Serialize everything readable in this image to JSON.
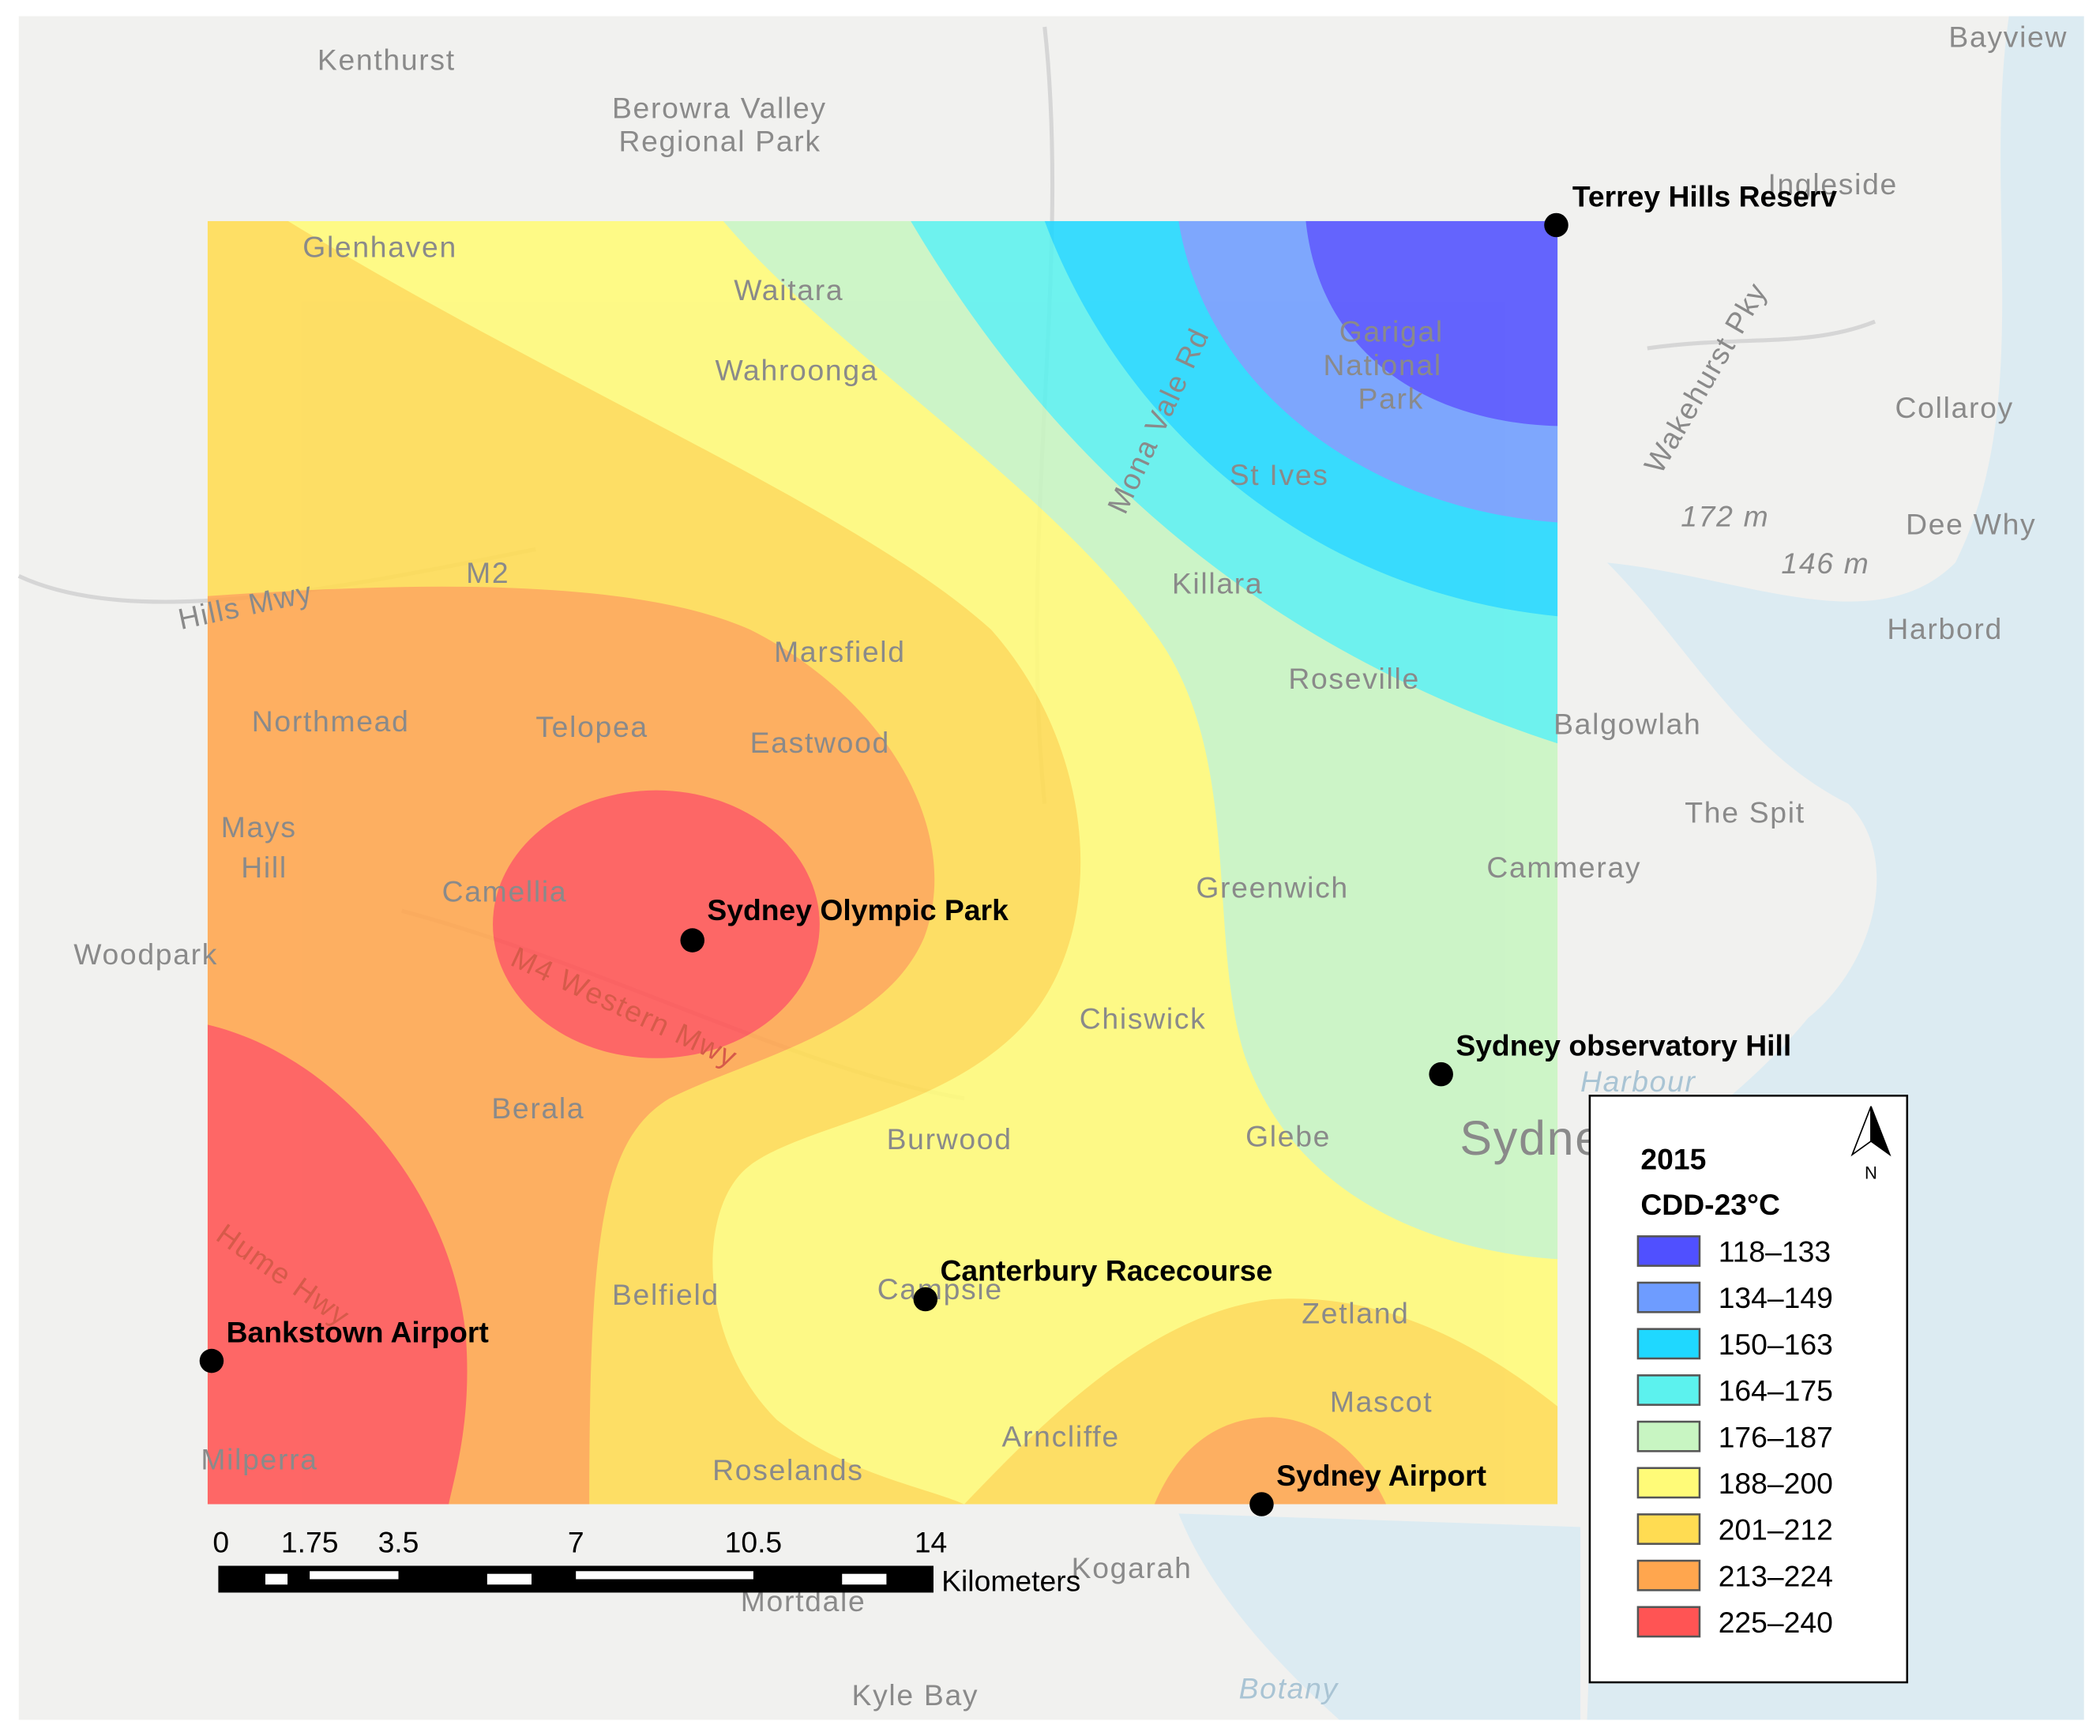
{
  "legend": {
    "title": "2015",
    "subtitle": "CDD-23°C",
    "north": "N",
    "items": [
      {
        "label": "118–133",
        "color": "#5050ff"
      },
      {
        "label": "134–149",
        "color": "#6e9cff"
      },
      {
        "label": "150–163",
        "color": "#1fd8ff"
      },
      {
        "label": "164–175",
        "color": "#5cf2ee"
      },
      {
        "label": "176–187",
        "color": "#c8f5c2"
      },
      {
        "label": "188–200",
        "color": "#fffb78"
      },
      {
        "label": "201–212",
        "color": "#ffdc52"
      },
      {
        "label": "213–224",
        "color": "#ffa64e"
      },
      {
        "label": "225–240",
        "color": "#ff5454"
      }
    ]
  },
  "scale_bar": {
    "ticks": [
      0,
      1.75,
      3.5,
      7,
      10.5,
      14
    ],
    "unit": "Kilometers"
  },
  "stations": [
    "Terrey Hills Reserv",
    "Sydney Olympic Park",
    "Sydney observatory Hill",
    "Canterbury Racecourse",
    "Bankstown Airport",
    "Sydney Airport"
  ],
  "places": [
    "Kenthurst",
    "Berowra Valley",
    "Regional Park",
    "Bayview",
    "Ingleside",
    "Collaroy",
    "Dee Why",
    "Harbord",
    "172 m",
    "146 m",
    "Balgowlah",
    "The Spit",
    "Cammeray",
    "Glenhaven",
    "Waitara",
    "Wahroonga",
    "Garigal",
    "National",
    "Park",
    "St Ives",
    "Killara",
    "Roseville",
    "Marsfield",
    "Northmead",
    "Telopea",
    "Eastwood",
    "Mays",
    "Hill",
    "Camellia",
    "Woodpark",
    "Greenwich",
    "Chiswick",
    "Berala",
    "Burwood",
    "Glebe",
    "Sydney",
    "Harbour",
    "Belfield",
    "Campsie",
    "Zetland",
    "Mascot",
    "Arncliffe",
    "Roselands",
    "Milperra",
    "Kogarah",
    "Mortdale",
    "Kyle Bay",
    "Botany",
    "Hills Mwy",
    "M2",
    "Mona Vale Rd",
    "Wakehurst Pky",
    "M4 Western Mwy",
    "Hume Hwy"
  ]
}
